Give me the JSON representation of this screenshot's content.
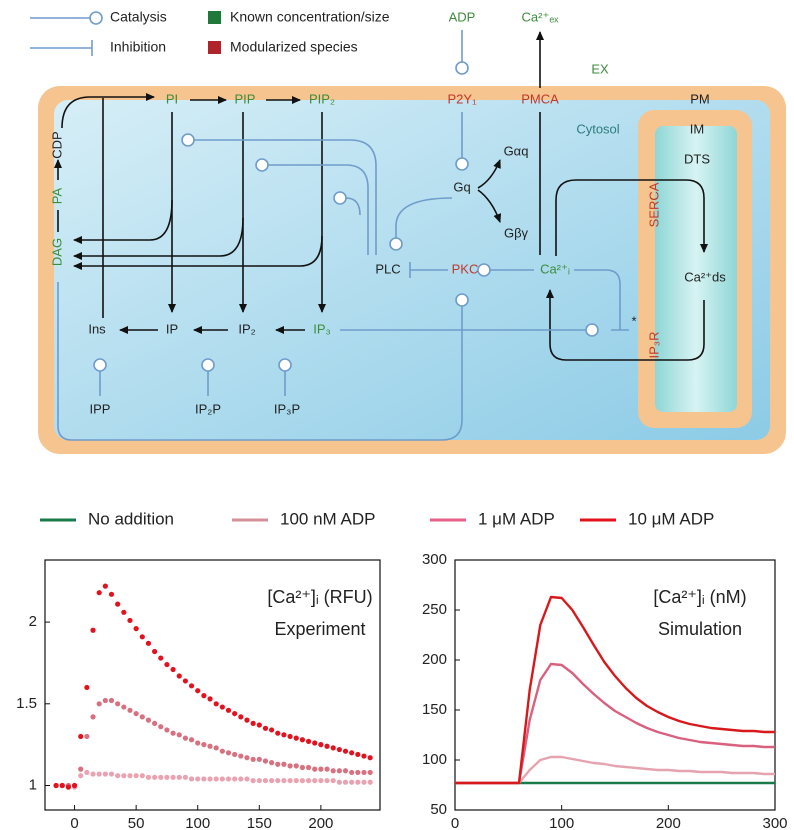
{
  "diagram": {
    "legend": {
      "catalysis": "Catalysis",
      "inhibition": "Inhibition",
      "known": "Known concentration/size",
      "modularized": "Modularized species"
    },
    "nodes": {
      "adp": "ADP",
      "ca_ex": "Ca²⁺ₑₓ",
      "ex": "EX",
      "pm": "PM",
      "cytosol": "Cytosol",
      "im": "IM",
      "dts": "DTS",
      "pi": "PI",
      "pip": "PIP",
      "pip2": "PIP₂",
      "p2y1": "P2Y₁",
      "pmca": "PMCA",
      "gq": "Gq",
      "gaq": "Gαq",
      "gbg": "Gβγ",
      "serca": "SERCA",
      "ca_ds": "Ca²⁺ds",
      "ip3r": "IP₃R",
      "dag": "DAG",
      "pa": "PA",
      "cdp": "CDP",
      "plc": "PLC",
      "pkc": "PKC",
      "ca_i": "Ca²⁺ᵢ",
      "ins": "Ins",
      "ip": "IP",
      "ip2": "IP₂",
      "ip3": "IP₃",
      "ipp": "IPP",
      "ip2p": "IP₂P",
      "ip3p": "IP₃P",
      "star": "*"
    }
  },
  "legend": [
    {
      "name": "No addition",
      "color": "#1b7a4a"
    },
    {
      "name": "100 nM ADP",
      "color": "#d4909a"
    },
    {
      "name": "1 μM ADP",
      "color": "#e8608a"
    },
    {
      "name": "10 μM ADP",
      "color": "#e3121e"
    }
  ],
  "chart_data": [
    {
      "type": "scatter",
      "annotations": [
        "[Ca²⁺]ᵢ (RFU)",
        "Experiment"
      ],
      "x": [
        -15,
        -10,
        -5,
        0,
        5,
        10,
        15,
        20,
        25,
        30,
        35,
        40,
        45,
        50,
        55,
        60,
        65,
        70,
        75,
        80,
        85,
        90,
        95,
        100,
        105,
        110,
        115,
        120,
        125,
        130,
        135,
        140,
        145,
        150,
        155,
        160,
        165,
        170,
        175,
        180,
        185,
        190,
        195,
        200,
        205,
        210,
        215,
        220,
        225,
        230,
        235,
        240
      ],
      "xlim": [
        -24,
        248
      ],
      "xticks": [
        0,
        50,
        100,
        150,
        200
      ],
      "ylim": [
        0.85,
        2.38
      ],
      "yticks": [
        1,
        1.5,
        2
      ],
      "series": [
        {
          "color": "#eba2b0",
          "values": [
            1,
            1,
            1,
            0.99,
            1.06,
            1.08,
            1.07,
            1.07,
            1.07,
            1.07,
            1.06,
            1.06,
            1.06,
            1.06,
            1.06,
            1.05,
            1.05,
            1.05,
            1.05,
            1.05,
            1.05,
            1.05,
            1.04,
            1.04,
            1.04,
            1.04,
            1.04,
            1.04,
            1.04,
            1.04,
            1.04,
            1.04,
            1.03,
            1.03,
            1.03,
            1.03,
            1.03,
            1.03,
            1.03,
            1.03,
            1.03,
            1.03,
            1.03,
            1.03,
            1.03,
            1.03,
            1.02,
            1.02,
            1.02,
            1.02,
            1.02,
            1.02
          ]
        },
        {
          "color": "#d9707f",
          "values": [
            1,
            1,
            1,
            1,
            1.1,
            1.3,
            1.42,
            1.5,
            1.52,
            1.52,
            1.5,
            1.48,
            1.46,
            1.44,
            1.42,
            1.4,
            1.38,
            1.36,
            1.34,
            1.32,
            1.31,
            1.29,
            1.28,
            1.26,
            1.25,
            1.24,
            1.23,
            1.21,
            1.2,
            1.19,
            1.18,
            1.17,
            1.16,
            1.16,
            1.15,
            1.14,
            1.13,
            1.13,
            1.12,
            1.12,
            1.11,
            1.11,
            1.1,
            1.1,
            1.1,
            1.09,
            1.09,
            1.09,
            1.08,
            1.08,
            1.08,
            1.08
          ]
        },
        {
          "color": "#e3121e",
          "values": [
            1,
            1,
            0.99,
            1,
            1.3,
            1.6,
            1.95,
            2.18,
            2.22,
            2.17,
            2.11,
            2.06,
            2.01,
            1.96,
            1.91,
            1.87,
            1.82,
            1.78,
            1.74,
            1.71,
            1.67,
            1.64,
            1.61,
            1.58,
            1.55,
            1.53,
            1.5,
            1.48,
            1.46,
            1.44,
            1.42,
            1.4,
            1.38,
            1.37,
            1.35,
            1.34,
            1.32,
            1.31,
            1.3,
            1.29,
            1.28,
            1.27,
            1.26,
            1.25,
            1.24,
            1.23,
            1.22,
            1.21,
            1.2,
            1.19,
            1.18,
            1.17
          ]
        }
      ]
    },
    {
      "type": "line",
      "annotations": [
        "[Ca²⁺]ᵢ (nM)",
        "Simulation"
      ],
      "x": [
        0,
        10,
        20,
        30,
        40,
        50,
        60,
        70,
        80,
        90,
        100,
        110,
        120,
        130,
        140,
        150,
        160,
        170,
        180,
        190,
        200,
        210,
        220,
        230,
        240,
        250,
        260,
        270,
        280,
        290,
        300
      ],
      "xlim": [
        0,
        300
      ],
      "xticks": [
        0,
        100,
        200,
        300
      ],
      "ylim": [
        50,
        300
      ],
      "yticks": [
        50,
        100,
        150,
        200,
        250,
        300
      ],
      "series": [
        {
          "color": "#1b7a4a",
          "values": [
            77,
            77,
            77,
            77,
            77,
            77,
            77,
            77,
            77,
            77,
            77,
            77,
            77,
            77,
            77,
            77,
            77,
            77,
            77,
            77,
            77,
            77,
            77,
            77,
            77,
            77,
            77,
            77,
            77,
            77,
            77
          ]
        },
        {
          "color": "#e5a3b0",
          "values": [
            77,
            77,
            77,
            77,
            77,
            77,
            77,
            90,
            100,
            103,
            103,
            101,
            99,
            97,
            96,
            94,
            93,
            92,
            91,
            90,
            90,
            89,
            89,
            88,
            88,
            88,
            87,
            87,
            87,
            86,
            86
          ]
        },
        {
          "color": "#d9607e",
          "values": [
            77,
            77,
            77,
            77,
            77,
            77,
            77,
            140,
            180,
            196,
            195,
            187,
            176,
            166,
            157,
            149,
            143,
            137,
            132,
            128,
            125,
            122,
            120,
            118,
            117,
            116,
            115,
            114,
            114,
            113,
            113
          ]
        },
        {
          "color": "#d7191c",
          "values": [
            77,
            77,
            77,
            77,
            77,
            77,
            77,
            170,
            235,
            263,
            262,
            250,
            233,
            215,
            198,
            184,
            172,
            162,
            154,
            148,
            143,
            139,
            136,
            134,
            132,
            131,
            130,
            129,
            129,
            128,
            128
          ]
        }
      ]
    }
  ]
}
